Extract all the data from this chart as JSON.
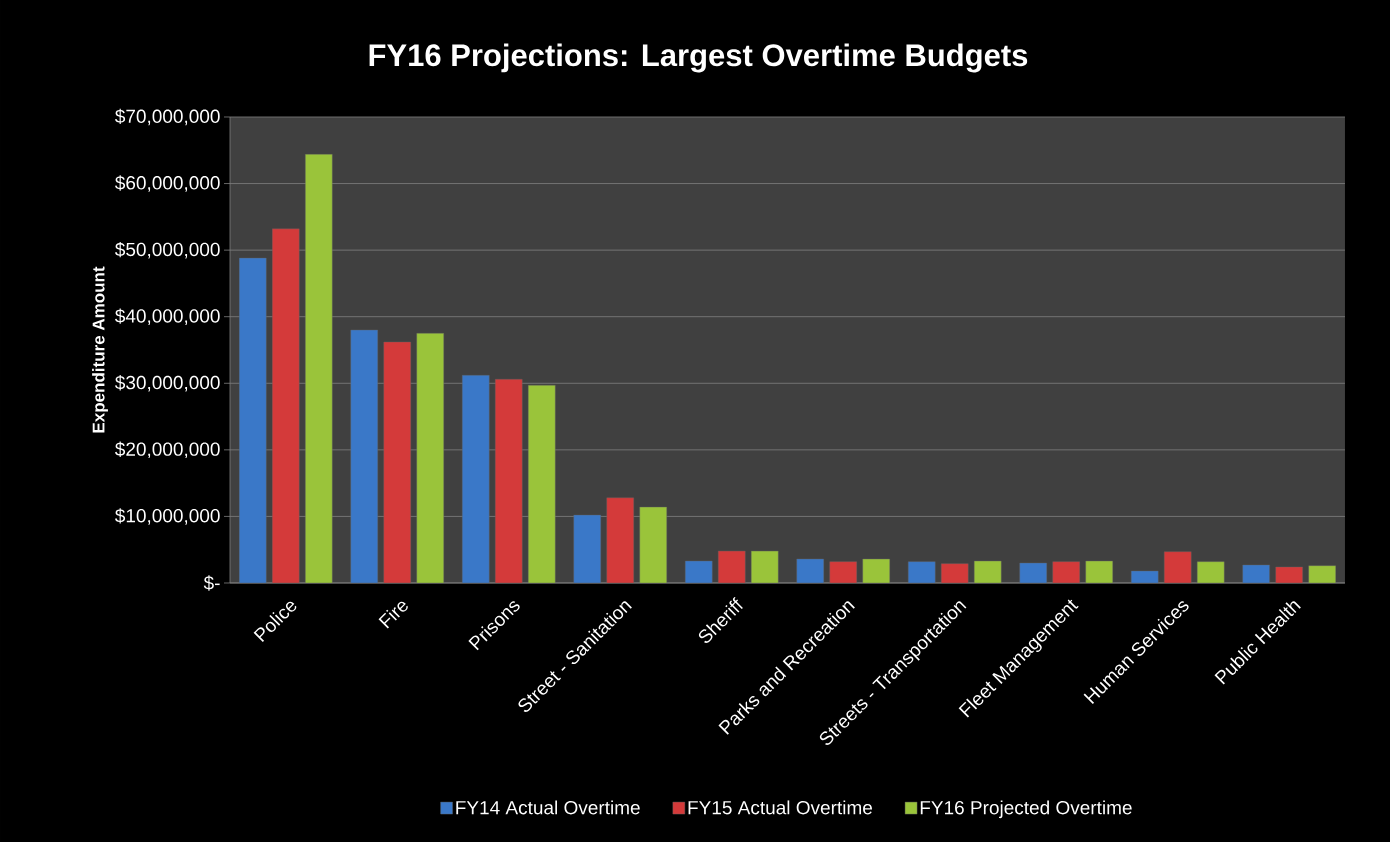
{
  "chart_data": {
    "type": "bar",
    "title": "FY16 Projections: Largest Overtime Budgets",
    "ylabel": "Expenditure Amount",
    "categories": [
      "Police",
      "Fire",
      "Prisons",
      "Street - Sanitation",
      "Sheriff",
      "Parks and Recreation",
      "Streets - Transportation",
      "Fleet Management",
      "Human Services",
      "Public Health"
    ],
    "series": [
      {
        "name": "FY14 Actual Overtime",
        "color": "#3a78c8",
        "values": [
          48800000,
          38000000,
          31200000,
          10200000,
          3300000,
          3600000,
          3200000,
          3000000,
          1800000,
          2700000
        ]
      },
      {
        "name": "FY15 Actual Overtime",
        "color": "#d43a3a",
        "values": [
          53200000,
          36200000,
          30600000,
          12800000,
          4800000,
          3200000,
          2900000,
          3200000,
          4700000,
          2400000
        ]
      },
      {
        "name": "FY16 Projected Overtime",
        "color": "#9ac43a",
        "values": [
          64400000,
          37500000,
          29700000,
          11400000,
          4800000,
          3600000,
          3300000,
          3300000,
          3200000,
          2600000
        ]
      }
    ],
    "ylim": [
      0,
      70000000
    ],
    "yticks": [
      {
        "value": 0,
        "label": "$-"
      },
      {
        "value": 10000000,
        "label": "$10,000,000"
      },
      {
        "value": 20000000,
        "label": "$20,000,000"
      },
      {
        "value": 30000000,
        "label": "$30,000,000"
      },
      {
        "value": 40000000,
        "label": "$40,000,000"
      },
      {
        "value": 50000000,
        "label": "$50,000,000"
      },
      {
        "value": 60000000,
        "label": "$60,000,000"
      },
      {
        "value": 70000000,
        "label": "$70,000,000"
      }
    ],
    "grid": "y",
    "legend": "bottom"
  }
}
